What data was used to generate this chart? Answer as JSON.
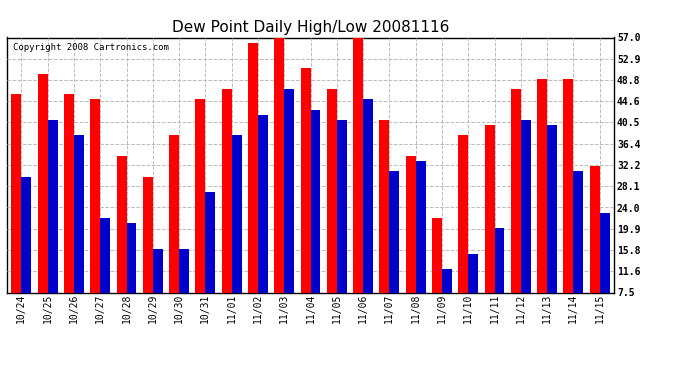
{
  "title": "Dew Point Daily High/Low 20081116",
  "copyright": "Copyright 2008 Cartronics.com",
  "categories": [
    "10/24",
    "10/25",
    "10/26",
    "10/27",
    "10/28",
    "10/29",
    "10/30",
    "10/31",
    "11/01",
    "11/02",
    "11/03",
    "11/04",
    "11/05",
    "11/06",
    "11/07",
    "11/08",
    "11/09",
    "11/10",
    "11/11",
    "11/12",
    "11/13",
    "11/14",
    "11/15"
  ],
  "high": [
    46,
    50,
    46,
    45,
    34,
    30,
    38,
    45,
    47,
    56,
    57,
    51,
    47,
    57,
    41,
    34,
    22,
    38,
    40,
    47,
    49,
    49,
    32
  ],
  "low": [
    30,
    41,
    38,
    22,
    21,
    16,
    16,
    27,
    38,
    42,
    47,
    43,
    41,
    45,
    31,
    33,
    12,
    15,
    20,
    41,
    40,
    31,
    23
  ],
  "high_color": "#ff0000",
  "low_color": "#0000cc",
  "bg_color": "#ffffff",
  "yticks": [
    7.5,
    11.6,
    15.8,
    19.9,
    24.0,
    28.1,
    32.2,
    36.4,
    40.5,
    44.6,
    48.8,
    52.9,
    57.0
  ],
  "ymin": 7.5,
  "ymax": 57.0,
  "grid_color": "#bbbbbb",
  "title_fontsize": 11,
  "tick_fontsize": 7,
  "copyright_fontsize": 6.5,
  "bar_width": 0.38
}
